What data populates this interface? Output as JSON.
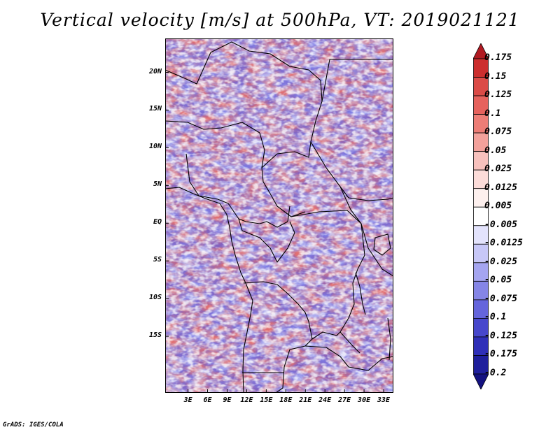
{
  "title": "Vertical velocity [m/s] at 500hPa, VT: 2019021121",
  "credit": "GrADS: IGES/COLA",
  "map": {
    "variable": "vertical velocity",
    "level": "500hPa",
    "lon_range": [
      -0.5,
      34.5
    ],
    "lat_range": [
      -22.5,
      24.5
    ],
    "lat_labels": [
      "20N",
      "15N",
      "10N",
      "5N",
      "EQ",
      "5S",
      "10S",
      "15S"
    ],
    "lat_values": [
      20,
      15,
      10,
      5,
      0,
      -5,
      -10,
      -15
    ],
    "lon_labels": [
      "3E",
      "6E",
      "9E",
      "12E",
      "15E",
      "18E",
      "21E",
      "24E",
      "27E",
      "30E",
      "33E"
    ],
    "lon_values": [
      3,
      6,
      9,
      12,
      15,
      18,
      21,
      24,
      27,
      30,
      33
    ]
  },
  "colorbar": {
    "labels": [
      "0.175",
      "0.15",
      "0.125",
      "0.1",
      "0.075",
      "0.05",
      "0.025",
      "0.0125",
      "0.005",
      "-0.005",
      "-0.0125",
      "-0.025",
      "-0.05",
      "-0.075",
      "-0.1",
      "-0.125",
      "-0.175",
      "-0.2"
    ],
    "colors": [
      "#b11a22",
      "#cc2e2e",
      "#db4b47",
      "#e6625d",
      "#ed7d76",
      "#f3a19b",
      "#f8c1bd",
      "#fcdcd9",
      "#fdf0ee",
      "#ffffff",
      "#e3e3fc",
      "#c7c7f7",
      "#a5a5f0",
      "#8585e6",
      "#6565dc",
      "#4747cc",
      "#2f2fb8",
      "#1f1f9c",
      "#131180"
    ],
    "units": "m/s"
  }
}
